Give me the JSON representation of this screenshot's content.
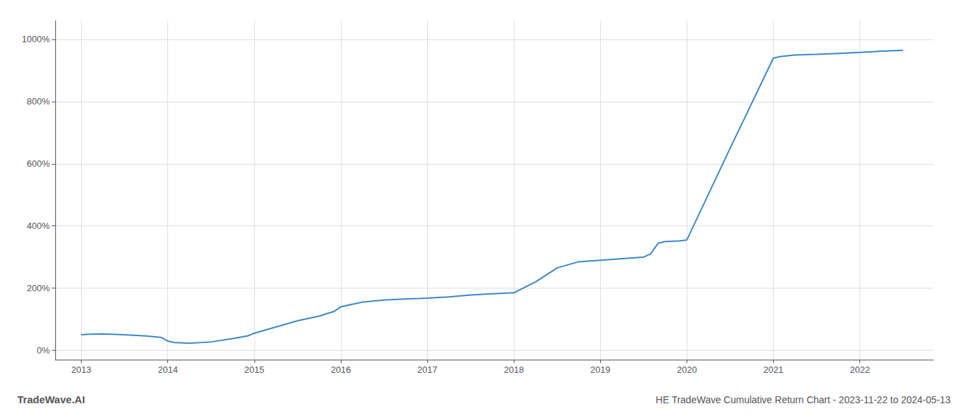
{
  "chart_data": {
    "type": "line",
    "title": "HE TradeWave Cumulative Return Chart - 2023-11-22 to 2024-05-13",
    "annotations": [
      "TradeWave.AI"
    ],
    "color": "#3a86c8",
    "x": [
      2013.0,
      2013.08,
      2013.25,
      2013.5,
      2013.75,
      2013.92,
      2014.0,
      2014.08,
      2014.25,
      2014.5,
      2014.75,
      2014.92,
      2015.0,
      2015.25,
      2015.5,
      2015.75,
      2015.92,
      2016.0,
      2016.25,
      2016.5,
      2016.75,
      2016.92,
      2017.0,
      2017.25,
      2017.5,
      2017.75,
      2018.0,
      2018.25,
      2018.5,
      2018.75,
      2019.0,
      2019.25,
      2019.5,
      2019.58,
      2019.67,
      2019.75,
      2019.92,
      2020.0,
      2020.5,
      2021.0,
      2021.08,
      2021.25,
      2021.5,
      2021.75,
      2022.0,
      2022.25,
      2022.5
    ],
    "values": [
      50,
      52,
      53,
      50,
      46,
      42,
      30,
      25,
      23,
      27,
      38,
      46,
      55,
      75,
      95,
      110,
      125,
      140,
      155,
      162,
      165,
      167,
      168,
      172,
      178,
      182,
      185,
      220,
      265,
      285,
      290,
      295,
      300,
      310,
      345,
      350,
      352,
      355,
      650,
      940,
      945,
      950,
      952,
      955,
      958,
      962,
      965
    ],
    "xlim": [
      2012.7,
      2022.85
    ],
    "ylim": [
      -30,
      1060
    ],
    "xticks": [
      2013,
      2014,
      2015,
      2016,
      2017,
      2018,
      2019,
      2020,
      2021,
      2022
    ],
    "yticks": [
      {
        "value": 0,
        "label": "0%"
      },
      {
        "value": 200,
        "label": "200%"
      },
      {
        "value": 400,
        "label": "400%"
      },
      {
        "value": 600,
        "label": "600%"
      },
      {
        "value": 800,
        "label": "800%"
      },
      {
        "value": 1000,
        "label": "1000%"
      }
    ],
    "grid": true
  }
}
